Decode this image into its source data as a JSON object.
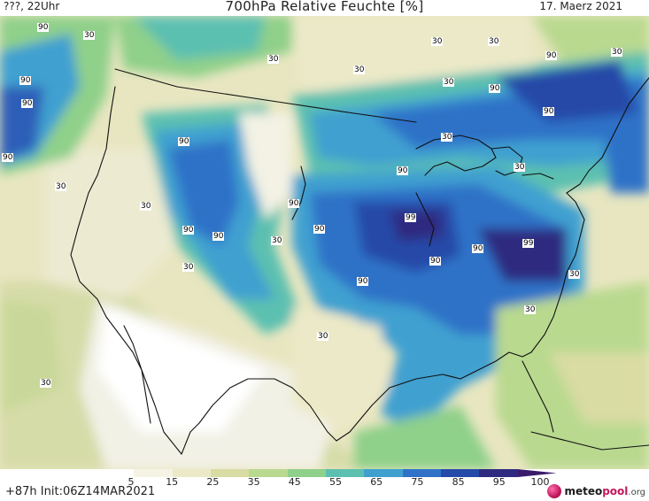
{
  "header": {
    "left": "???, 22Uhr",
    "title": "700hPa Relative Feuchte [%]",
    "date": "17. Maerz 2021"
  },
  "map": {
    "contour_labels": [
      {
        "text": "90"
      },
      {
        "text": "30"
      },
      {
        "text": "90"
      },
      {
        "text": "90"
      },
      {
        "text": "90"
      },
      {
        "text": "30"
      },
      {
        "text": "30"
      },
      {
        "text": "30"
      },
      {
        "text": "30"
      },
      {
        "text": "30"
      },
      {
        "text": "90"
      },
      {
        "text": "30"
      },
      {
        "text": "30"
      },
      {
        "text": "90"
      },
      {
        "text": "90"
      },
      {
        "text": "90"
      },
      {
        "text": "30"
      },
      {
        "text": "30"
      },
      {
        "text": "30"
      },
      {
        "text": "90"
      },
      {
        "text": "90"
      },
      {
        "text": "30"
      },
      {
        "text": "90"
      },
      {
        "text": "90"
      },
      {
        "text": "99"
      },
      {
        "text": "90"
      },
      {
        "text": "99"
      },
      {
        "text": "90"
      },
      {
        "text": "90"
      },
      {
        "text": "30"
      },
      {
        "text": "90"
      },
      {
        "text": "30"
      },
      {
        "text": "30"
      },
      {
        "text": "30"
      },
      {
        "text": "30"
      }
    ]
  },
  "colorbar": {
    "ticks": [
      "5",
      "15",
      "25",
      "35",
      "45",
      "55",
      "65",
      "75",
      "85",
      "95",
      "100"
    ],
    "colors": [
      "#ffffff",
      "#f5f3e3",
      "#ece9c8",
      "#d9dca3",
      "#b9d98f",
      "#8fd08a",
      "#5cc0b0",
      "#3fa0d0",
      "#2f72c8",
      "#254aa8",
      "#2f2a80",
      "#3b1c6b"
    ]
  },
  "footer": {
    "run": "+87h Init:06Z14MAR2021",
    "logo_main": "meteo",
    "logo_pool": "pool",
    "logo_tld": ".org"
  }
}
